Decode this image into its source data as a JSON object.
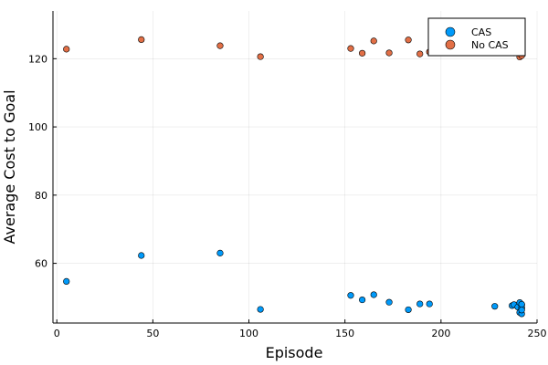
{
  "chart_data": {
    "type": "scatter",
    "xlabel": "Episode",
    "ylabel": "Average Cost to Goal",
    "xlim": [
      -2,
      250
    ],
    "ylim": [
      42.5,
      134
    ],
    "xticks": [
      0,
      50,
      100,
      150,
      200,
      250
    ],
    "yticks": [
      60,
      80,
      100,
      120
    ],
    "grid": true,
    "legend_position": "top-right",
    "series": [
      {
        "name": "CAS",
        "color": "#009AFA",
        "x": [
          5,
          44,
          85,
          106,
          153,
          159,
          165,
          173,
          183,
          189,
          194,
          228,
          237,
          238,
          240,
          241,
          241,
          242,
          242,
          242,
          242,
          242,
          242
        ],
        "y": [
          54.7,
          62.3,
          63.0,
          46.5,
          50.6,
          49.3,
          50.8,
          48.6,
          46.4,
          48.1,
          48.1,
          47.4,
          47.6,
          47.9,
          47.2,
          48.5,
          45.6,
          46.8,
          45.2,
          47.8,
          47.0,
          48.0,
          46.3
        ]
      },
      {
        "name": "No CAS",
        "color": "#E26F46",
        "x": [
          5,
          44,
          85,
          106,
          153,
          159,
          165,
          173,
          183,
          189,
          194,
          228,
          237,
          238,
          240,
          241,
          241,
          242,
          242,
          242,
          242,
          242,
          242,
          242
        ],
        "y": [
          122.8,
          125.6,
          123.8,
          120.6,
          123.0,
          121.6,
          125.2,
          121.7,
          125.5,
          121.4,
          122.0,
          122.4,
          122.8,
          121.7,
          131.0,
          129.5,
          120.5,
          128.2,
          126.0,
          124.9,
          123.8,
          122.7,
          121.6,
          120.9
        ]
      }
    ]
  }
}
